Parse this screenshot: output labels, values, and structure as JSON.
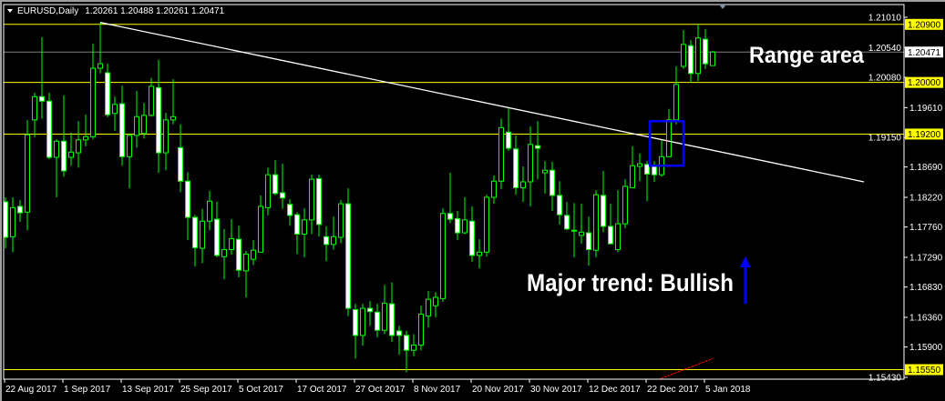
{
  "header": {
    "dropdown_icon": "triangle-down-icon",
    "symbol_timeframe": "EURUSD,Daily",
    "ohlc_readout": "1.20261 1.20488 1.20261 1.20471"
  },
  "colors": {
    "background": "#000000",
    "frame": "#ffffff",
    "candle_outline": "#00ff00",
    "bear_body": "#ffffff",
    "bull_body": "#000000",
    "level_line": "#ffff00",
    "current_price_line": "#808080",
    "trendline": "#ffffff",
    "box": "#0000ff",
    "arrow": "#0000ff",
    "red_line": "#ff0000"
  },
  "chart_data": {
    "type": "candlestick",
    "symbol": "EURUSD",
    "timeframe": "Daily",
    "ylim": [
      1.1543,
      1.2111
    ],
    "y_ticks": [
      "1.21010",
      "1.20540",
      "1.20080",
      "1.19610",
      "1.19150",
      "1.18690",
      "1.18220",
      "1.17760",
      "1.17290",
      "1.16830",
      "1.16360",
      "1.15900",
      "1.15430"
    ],
    "x_labels": [
      {
        "label": "22 Aug 2017",
        "bar": 0
      },
      {
        "label": "1 Sep 2017",
        "bar": 8
      },
      {
        "label": "13 Sep 2017",
        "bar": 16
      },
      {
        "label": "25 Sep 2017",
        "bar": 24
      },
      {
        "label": "5 Oct 2017",
        "bar": 32
      },
      {
        "label": "17 Oct 2017",
        "bar": 40
      },
      {
        "label": "27 Oct 2017",
        "bar": 48
      },
      {
        "label": "8 Nov 2017",
        "bar": 56
      },
      {
        "label": "20 Nov 2017",
        "bar": 64
      },
      {
        "label": "30 Nov 2017",
        "bar": 72
      },
      {
        "label": "12 Dec 2017",
        "bar": 80
      },
      {
        "label": "22 Dec 2017",
        "bar": 88
      },
      {
        "label": "5 Jan 2018",
        "bar": 96
      }
    ],
    "ohlc_columns": [
      "open",
      "high",
      "low",
      "close"
    ],
    "ohlc": [
      [
        1.1815,
        1.1822,
        1.1743,
        1.176
      ],
      [
        1.1761,
        1.1822,
        1.1737,
        1.1806
      ],
      [
        1.1808,
        1.1818,
        1.1784,
        1.1798
      ],
      [
        1.1799,
        1.1942,
        1.1771,
        1.1919
      ],
      [
        1.1942,
        1.1984,
        1.1915,
        1.1978
      ],
      [
        1.1978,
        1.207,
        1.1944,
        1.1971
      ],
      [
        1.1971,
        1.1984,
        1.1881,
        1.1884
      ],
      [
        1.1884,
        1.1912,
        1.1822,
        1.1909
      ],
      [
        1.1909,
        1.198,
        1.1854,
        1.1863
      ],
      [
        1.1884,
        1.1922,
        1.1871,
        1.1892
      ],
      [
        1.1891,
        1.194,
        1.1868,
        1.1911
      ],
      [
        1.1911,
        1.195,
        1.1901,
        1.1916
      ],
      [
        1.1916,
        1.206,
        1.1912,
        1.2022
      ],
      [
        1.2022,
        1.2093,
        1.2014,
        1.2029
      ],
      [
        1.2015,
        1.2029,
        1.1946,
        1.195
      ],
      [
        1.1952,
        1.1978,
        1.1925,
        1.1966
      ],
      [
        1.1967,
        1.1995,
        1.1871,
        1.1885
      ],
      [
        1.1885,
        1.1921,
        1.1836,
        1.1918
      ],
      [
        1.1918,
        1.1987,
        1.1899,
        1.1947
      ],
      [
        1.1921,
        1.1968,
        1.1913,
        1.1949
      ],
      [
        1.1949,
        1.2007,
        1.1947,
        1.1994
      ],
      [
        1.1992,
        1.2035,
        1.186,
        1.1891
      ],
      [
        1.1891,
        1.1953,
        1.1864,
        1.1942
      ],
      [
        1.1942,
        1.2005,
        1.1935,
        1.1947
      ],
      [
        1.1899,
        1.1935,
        1.183,
        1.1847
      ],
      [
        1.1847,
        1.1861,
        1.1756,
        1.1791
      ],
      [
        1.1791,
        1.1795,
        1.1715,
        1.1744
      ],
      [
        1.1743,
        1.1804,
        1.172,
        1.1785
      ],
      [
        1.1785,
        1.1832,
        1.1771,
        1.1816
      ],
      [
        1.1788,
        1.1815,
        1.1729,
        1.1732
      ],
      [
        1.173,
        1.1773,
        1.1695,
        1.1741
      ],
      [
        1.1741,
        1.1788,
        1.1733,
        1.1758
      ],
      [
        1.1757,
        1.1778,
        1.1698,
        1.1709
      ],
      [
        1.1708,
        1.1739,
        1.1667,
        1.1734
      ],
      [
        1.1726,
        1.1756,
        1.1717,
        1.174
      ],
      [
        1.1737,
        1.1825,
        1.1737,
        1.1808
      ],
      [
        1.1806,
        1.1868,
        1.1794,
        1.1857
      ],
      [
        1.1857,
        1.188,
        1.1825,
        1.1828
      ],
      [
        1.1829,
        1.1874,
        1.1804,
        1.1821
      ],
      [
        1.1811,
        1.1819,
        1.1778,
        1.1794
      ],
      [
        1.1795,
        1.1799,
        1.1734,
        1.1765
      ],
      [
        1.1765,
        1.1805,
        1.1729,
        1.1787
      ],
      [
        1.1787,
        1.1857,
        1.1765,
        1.185
      ],
      [
        1.1851,
        1.1857,
        1.1761,
        1.178
      ],
      [
        1.1761,
        1.1777,
        1.1723,
        1.1749
      ],
      [
        1.1749,
        1.1792,
        1.1741,
        1.1761
      ],
      [
        1.176,
        1.1818,
        1.1751,
        1.1812
      ],
      [
        1.1812,
        1.1836,
        1.1638,
        1.165
      ],
      [
        1.1648,
        1.1657,
        1.1572,
        1.1608
      ],
      [
        1.1608,
        1.1657,
        1.1592,
        1.165
      ],
      [
        1.165,
        1.1661,
        1.1623,
        1.1645
      ],
      [
        1.1644,
        1.1657,
        1.1605,
        1.1616
      ],
      [
        1.1616,
        1.1686,
        1.161,
        1.1658
      ],
      [
        1.1657,
        1.169,
        1.1598,
        1.1608
      ],
      [
        1.1615,
        1.1623,
        1.1578,
        1.1608
      ],
      [
        1.1608,
        1.1615,
        1.1551,
        1.1585
      ],
      [
        1.1585,
        1.161,
        1.1576,
        1.1593
      ],
      [
        1.1593,
        1.1654,
        1.1585,
        1.1641
      ],
      [
        1.1638,
        1.1677,
        1.162,
        1.1664
      ],
      [
        1.1654,
        1.1675,
        1.1636,
        1.1667
      ],
      [
        1.1665,
        1.1805,
        1.166,
        1.1797
      ],
      [
        1.1797,
        1.186,
        1.1782,
        1.1788
      ],
      [
        1.1789,
        1.1801,
        1.1756,
        1.1767
      ],
      [
        1.1767,
        1.1822,
        1.1765,
        1.1787
      ],
      [
        1.1785,
        1.1808,
        1.1722,
        1.1732
      ],
      [
        1.1732,
        1.1757,
        1.1712,
        1.1737
      ],
      [
        1.1737,
        1.1826,
        1.173,
        1.1822
      ],
      [
        1.1822,
        1.1856,
        1.1812,
        1.1847
      ],
      [
        1.1847,
        1.1944,
        1.1835,
        1.193
      ],
      [
        1.1923,
        1.196,
        1.1894,
        1.1898
      ],
      [
        1.1897,
        1.1918,
        1.1826,
        1.1837
      ],
      [
        1.1837,
        1.187,
        1.1815,
        1.1846
      ],
      [
        1.1846,
        1.1932,
        1.1808,
        1.1904
      ],
      [
        1.1902,
        1.194,
        1.185,
        1.1898
      ],
      [
        1.186,
        1.1878,
        1.1828,
        1.1864
      ],
      [
        1.1864,
        1.1877,
        1.1801,
        1.1825
      ],
      [
        1.1825,
        1.1847,
        1.178,
        1.1795
      ],
      [
        1.1794,
        1.1815,
        1.1771,
        1.1773
      ],
      [
        1.1771,
        1.1813,
        1.1729,
        1.1771
      ],
      [
        1.1763,
        1.1812,
        1.175,
        1.1768
      ],
      [
        1.1767,
        1.1792,
        1.1716,
        1.1741
      ],
      [
        1.174,
        1.1833,
        1.1729,
        1.1826
      ],
      [
        1.1825,
        1.1863,
        1.1768,
        1.1777
      ],
      [
        1.1777,
        1.1812,
        1.1749,
        1.175
      ],
      [
        1.1741,
        1.1833,
        1.1737,
        1.1781
      ],
      [
        1.1781,
        1.185,
        1.1774,
        1.1839
      ],
      [
        1.1837,
        1.1901,
        1.1836,
        1.1871
      ],
      [
        1.187,
        1.189,
        1.1847,
        1.1874
      ],
      [
        1.1873,
        1.1878,
        1.1816,
        1.1858
      ],
      [
        1.1871,
        1.1878,
        1.1846,
        1.1857
      ],
      [
        1.1857,
        1.1911,
        1.1854,
        1.1885
      ],
      [
        1.1885,
        1.1959,
        1.1884,
        1.1942
      ],
      [
        1.1942,
        1.2025,
        1.1935,
        1.1997
      ],
      [
        1.2025,
        1.2081,
        1.2021,
        1.2059
      ],
      [
        1.2057,
        1.2066,
        1.2,
        1.2014
      ],
      [
        1.2014,
        1.209,
        1.2002,
        1.2069
      ],
      [
        1.2067,
        1.2083,
        1.2021,
        1.2029
      ],
      [
        1.20261,
        1.20488,
        1.20261,
        1.20471
      ]
    ],
    "horizontal_levels": [
      {
        "price": 1.209,
        "label": "1.20900"
      },
      {
        "price": 1.2,
        "label": "1.20000"
      },
      {
        "price": 1.192,
        "label": "1.19200"
      },
      {
        "price": 1.1555,
        "label": "1.15550"
      }
    ],
    "current_price": {
      "price": 1.20471,
      "label": "1.20471"
    },
    "trendline": {
      "from": {
        "bar": 13,
        "price": 1.2093
      },
      "to": {
        "bar": 117.75,
        "price": 1.1846
      }
    },
    "breakout_box": {
      "bar_from": 88.4,
      "bar_to": 93,
      "price_top": 1.194,
      "price_bottom": 1.1871
    },
    "red_line": {
      "from": {
        "bar": 89.4,
        "price": 1.1539
      },
      "to": {
        "bar": 97,
        "price": 1.1572
      }
    },
    "annotations": [
      {
        "text": "Range area"
      },
      {
        "text": "Major trend: Bullish"
      }
    ],
    "arrow": {
      "direction": "up",
      "icon": "arrow-up-icon"
    },
    "grid": false
  }
}
